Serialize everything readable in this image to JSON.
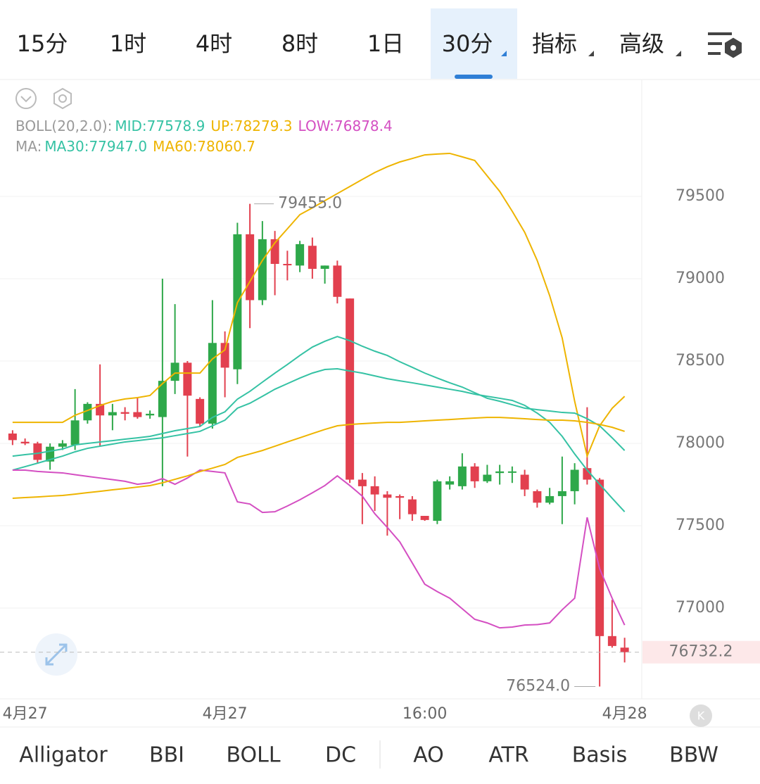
{
  "top_tabs": {
    "items": [
      "15分",
      "1时",
      "4时",
      "8时",
      "1日",
      "30分",
      "指标",
      "高级"
    ],
    "active": 5
  },
  "bottom_tabs": {
    "items": [
      "Alligator",
      "BBI",
      "BOLL",
      "DC",
      "AO",
      "ATR",
      "Basis",
      "BBW"
    ],
    "active": 2
  },
  "legend": {
    "boll_name": "BOLL(20,2.0):",
    "boll_items": [
      {
        "text": "MID:77578.9",
        "color": "#35c2a4"
      },
      {
        "text": "UP:78279.3",
        "color": "#eeb400"
      },
      {
        "text": "LOW:76878.4",
        "color": "#d44fc2"
      }
    ],
    "ma_name": "MA:",
    "ma_items": [
      {
        "text": "MA30:77947.0",
        "color": "#35c2a4"
      },
      {
        "text": "MA60:78060.7",
        "color": "#eeb400"
      }
    ]
  },
  "chart_data": {
    "type": "candlestick",
    "categories": [
      null,
      "4月27",
      null,
      null,
      null,
      null,
      null,
      null,
      null,
      null,
      null,
      null,
      null,
      null,
      null,
      null,
      null,
      "4月27",
      null,
      null,
      null,
      null,
      null,
      null,
      null,
      null,
      null,
      null,
      null,
      null,
      null,
      null,
      null,
      "16:00",
      null,
      null,
      null,
      null,
      null,
      null,
      null,
      null,
      null,
      null,
      null,
      null,
      null,
      null,
      null,
      "4月28"
    ],
    "open": [
      78060,
      78010,
      78000,
      77890,
      77980,
      77990,
      78140,
      78240,
      78170,
      78190,
      78190,
      78170,
      78160,
      78380,
      78490,
      78270,
      78120,
      78610,
      78450,
      79270,
      78870,
      79240,
      79090,
      79080,
      79200,
      79060,
      79080,
      78880,
      77780,
      77740,
      77690,
      77680,
      77660,
      77560,
      77530,
      77750,
      77740,
      77860,
      77770,
      77820,
      77830,
      77810,
      77710,
      77640,
      77680,
      77710,
      77850,
      77780,
      76830,
      76760
    ],
    "high": [
      78080,
      78030,
      78010,
      78000,
      78020,
      78330,
      78250,
      78480,
      78240,
      78220,
      78280,
      78200,
      79000,
      78846,
      78500,
      78280,
      78870,
      78680,
      79340,
      79455,
      79350,
      79290,
      79170,
      79230,
      79250,
      79080,
      79110,
      78880,
      77820,
      77800,
      77710,
      77690,
      77680,
      77560,
      77780,
      77800,
      77940,
      77880,
      77870,
      77870,
      77860,
      77840,
      77720,
      77730,
      77920,
      77880,
      78220,
      77790,
      77050,
      76820
    ],
    "low": [
      77990,
      77990,
      77880,
      77840,
      77960,
      77960,
      78120,
      77980,
      78080,
      78140,
      78150,
      78150,
      77740,
      78300,
      77920,
      78100,
      78090,
      78280,
      78360,
      78700,
      78840,
      78900,
      78990,
      79040,
      79000,
      78970,
      78850,
      77760,
      77510,
      77590,
      77440,
      77540,
      77530,
      77530,
      77510,
      77720,
      77720,
      77730,
      77760,
      77750,
      77760,
      77680,
      77610,
      77630,
      77510,
      77630,
      77750,
      76524,
      76760,
      76670
    ],
    "close": [
      78020,
      78000,
      77900,
      77980,
      78000,
      78140,
      78240,
      78170,
      78190,
      78180,
      78160,
      78180,
      78380,
      78490,
      78290,
      78120,
      78610,
      78460,
      79270,
      78870,
      79240,
      79090,
      79085,
      79210,
      79060,
      79080,
      78890,
      77780,
      77740,
      77690,
      77670,
      77670,
      77570,
      77535,
      77770,
      77770,
      77860,
      77770,
      77810,
      77830,
      77830,
      77720,
      77640,
      77680,
      77710,
      77840,
      77780,
      76830,
      76770,
      76732.2
    ],
    "up_color": "#2ea84a",
    "down_color": "#e2404f",
    "lines": [
      {
        "name": "MID",
        "color": "#35c2a4",
        "values": [
          77838,
          77859,
          77880,
          77902,
          77923,
          77949,
          77970,
          77983,
          77996,
          78009,
          78017,
          78026,
          78034,
          78047,
          78060,
          78073,
          78107,
          78141,
          78214,
          78244,
          78286,
          78329,
          78363,
          78397,
          78427,
          78449,
          78453,
          78440,
          78427,
          78410,
          78393,
          78380,
          78368,
          78355,
          78342,
          78329,
          78316,
          78299,
          78286,
          78274,
          78261,
          78231,
          78184,
          78128,
          78043,
          77936,
          77838,
          77752,
          77667,
          77585
        ]
      },
      {
        "name": "UP",
        "color": "#eeb400",
        "values": [
          78128,
          78128,
          78128,
          78128,
          78128,
          78171,
          78200,
          78230,
          78255,
          78270,
          78278,
          78291,
          78363,
          78427,
          78427,
          78427,
          78513,
          78568,
          78855,
          78983,
          79111,
          79218,
          79303,
          79389,
          79430,
          79474,
          79517,
          79560,
          79603,
          79645,
          79680,
          79709,
          79730,
          79752,
          79757,
          79761,
          79740,
          79718,
          79624,
          79530,
          79410,
          79282,
          79111,
          78897,
          78641,
          78256,
          77923,
          78107,
          78213,
          78286
        ]
      },
      {
        "name": "LOW",
        "color": "#d44fc2",
        "values": [
          77838,
          77838,
          77830,
          77825,
          77821,
          77810,
          77800,
          77790,
          77780,
          77770,
          77752,
          77761,
          77786,
          77752,
          77790,
          77838,
          77830,
          77821,
          77645,
          77632,
          77581,
          77585,
          77620,
          77658,
          77700,
          77744,
          77803,
          77744,
          77680,
          77573,
          77490,
          77402,
          77274,
          77145,
          77100,
          77060,
          76996,
          76932,
          76910,
          76880,
          76885,
          76897,
          76900,
          76910,
          76990,
          77060,
          77551,
          77239,
          77060,
          76897
        ]
      },
      {
        "name": "MA30",
        "color": "#35c2a4",
        "values": [
          77923,
          77932,
          77940,
          77953,
          77966,
          77991,
          78000,
          78009,
          78017,
          78026,
          78034,
          78043,
          78060,
          78077,
          78090,
          78103,
          78158,
          78192,
          78269,
          78316,
          78372,
          78427,
          78479,
          78534,
          78585,
          78620,
          78649,
          78624,
          78590,
          78560,
          78534,
          78496,
          78462,
          78427,
          78397,
          78368,
          78342,
          78308,
          78274,
          78256,
          78235,
          78214,
          78205,
          78197,
          78188,
          78184,
          78150,
          78107,
          78034,
          77957
        ]
      },
      {
        "name": "MA60",
        "color": "#eeb400",
        "values": [
          77667,
          77671,
          77675,
          77680,
          77684,
          77692,
          77701,
          77709,
          77718,
          77726,
          77735,
          77744,
          77761,
          77782,
          77803,
          77829,
          77850,
          77872,
          77915,
          77936,
          77957,
          77983,
          78009,
          78034,
          78060,
          78085,
          78107,
          78115,
          78120,
          78124,
          78128,
          78128,
          78132,
          78137,
          78141,
          78145,
          78150,
          78154,
          78158,
          78158,
          78154,
          78150,
          78145,
          78141,
          78141,
          78137,
          78128,
          78115,
          78098,
          78073
        ]
      }
    ],
    "ylim": [
      76449,
      80201
    ],
    "yticks": [
      77000,
      77500,
      78000,
      78500,
      79000,
      79500
    ],
    "grid": true,
    "high_label": "79455.0",
    "low_label": "76524.0",
    "last_label": "76732.2"
  }
}
